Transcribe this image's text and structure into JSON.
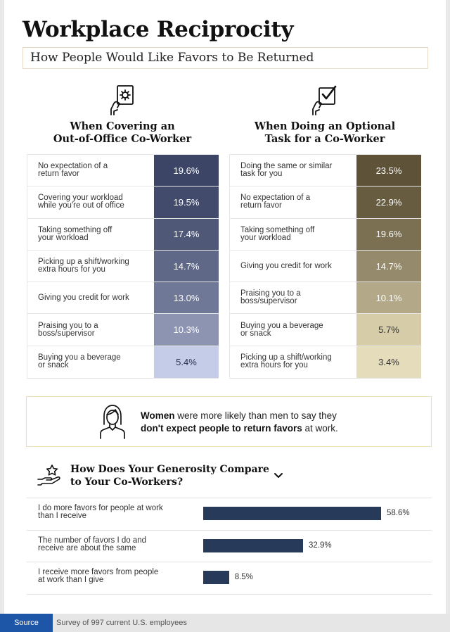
{
  "header": {
    "title": "Workplace Reciprocity",
    "subtitle": "How People Would Like Favors to Be Returned"
  },
  "left_panel": {
    "title_line1": "When Covering an",
    "title_line2": "Out-of-Office Co-Worker",
    "icon": "hand-holding-gear-icon",
    "rows": [
      {
        "label": "No expectation of a\nreturn favor",
        "value": "19.6%",
        "color": "#3c4566"
      },
      {
        "label": "Covering your workload\nwhile you're out of office",
        "value": "19.5%",
        "color": "#424b6b"
      },
      {
        "label": "Taking something off\nyour workload",
        "value": "17.4%",
        "color": "#4f5876"
      },
      {
        "label": "Picking up a shift/working\nextra hours for you",
        "value": "14.7%",
        "color": "#5f6886"
      },
      {
        "label": "Giving you credit for work",
        "value": "13.0%",
        "color": "#6f7896"
      },
      {
        "label": "Praising you to a\nboss/supervisor",
        "value": "10.3%",
        "color": "#8c94b2"
      },
      {
        "label": "Buying you a beverage\nor snack",
        "value": "5.4%",
        "color": "#c5cce8"
      }
    ]
  },
  "right_panel": {
    "title_line1": "When Doing an Optional",
    "title_line2": "Task for a Co-Worker",
    "icon": "hand-holding-checklist-icon",
    "rows": [
      {
        "label": "Doing the same or similar\ntask for you",
        "value": "23.5%",
        "color": "#5e5338"
      },
      {
        "label": "No expectation of a\nreturn favor",
        "value": "22.9%",
        "color": "#675c40"
      },
      {
        "label": "Taking something off\nyour workload",
        "value": "19.6%",
        "color": "#7b7052"
      },
      {
        "label": "Giving you credit for work",
        "value": "14.7%",
        "color": "#958a6b"
      },
      {
        "label": "Praising you to a\nboss/supervisor",
        "value": "10.1%",
        "color": "#b3a887"
      },
      {
        "label": "Buying you a beverage\nor snack",
        "value": "5.7%",
        "color": "#d6cca8"
      },
      {
        "label": "Picking up a shift/working\nextra hours for you",
        "value": "3.4%",
        "color": "#e5dcbb"
      }
    ]
  },
  "callout": {
    "icon": "woman-avatar-icon",
    "bold1": "Women",
    "text1": " were more likely than men to say they",
    "bold2": "don't expect people to return favors",
    "text2": " at work."
  },
  "generosity": {
    "icon": "hand-holding-star-icon",
    "title_line1": "How Does Your Generosity Compare",
    "title_line2": "to Your Co-Workers?",
    "chevron_icon": "chevron-down-icon"
  },
  "footer": {
    "source_label": "Source",
    "source_text": "Survey of 997 current U.S. employees"
  },
  "chart_data": [
    {
      "type": "table",
      "title": "When Covering an Out-of-Office Co-Worker",
      "categories": [
        "No expectation of a return favor",
        "Covering your workload while you're out of office",
        "Taking something off your workload",
        "Picking up a shift/working extra hours for you",
        "Giving you credit for work",
        "Praising you to a boss/supervisor",
        "Buying you a beverage or snack"
      ],
      "values": [
        19.6,
        19.5,
        17.4,
        14.7,
        13.0,
        10.3,
        5.4
      ]
    },
    {
      "type": "table",
      "title": "When Doing an Optional Task for a Co-Worker",
      "categories": [
        "Doing the same or similar task for you",
        "No expectation of a return favor",
        "Taking something off your workload",
        "Giving you credit for work",
        "Praising you to a boss/supervisor",
        "Buying you a beverage or snack",
        "Picking up a shift/working extra hours for you"
      ],
      "values": [
        23.5,
        22.9,
        19.6,
        14.7,
        10.1,
        5.7,
        3.4
      ]
    },
    {
      "type": "bar",
      "title": "How Does Your Generosity Compare to Your Co-Workers?",
      "categories": [
        "I do more favors for people at work\nthan I receive",
        "The number of favors I do and\nreceive are about the same",
        "I receive more favors from people\nat work than I give"
      ],
      "values": [
        58.6,
        32.9,
        8.5
      ],
      "labels": [
        "58.6%",
        "32.9%",
        "8.5%"
      ],
      "color": "#273a5a",
      "xlim": [
        0,
        58.6
      ]
    }
  ]
}
